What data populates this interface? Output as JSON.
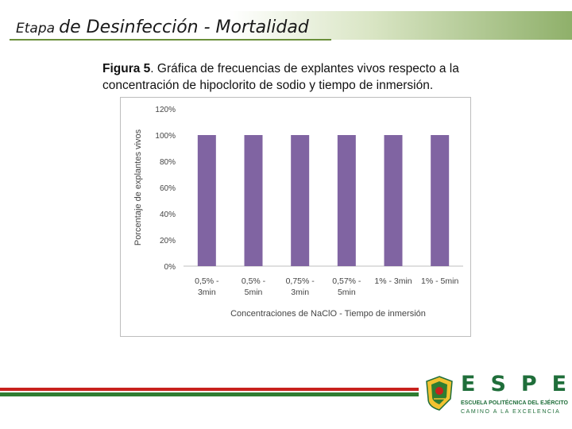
{
  "slide": {
    "title_prefix": "Etapa",
    "title_main": "de Desinfección - Mortalidad"
  },
  "caption": {
    "figure_label": "Figura 5",
    "text": ". Gráfica de frecuencias de explantes vivos respecto  a la concentración de hipoclorito de sodio y tiempo de inmersión."
  },
  "colors": {
    "bar": "#8064a2",
    "stripe_red": "#c8211d",
    "stripe_green": "#2f7d32",
    "brand_green": "#1f6e3a"
  },
  "chart_data": {
    "type": "bar",
    "categories": [
      [
        "0,5% -",
        "3min"
      ],
      [
        "0,5% -",
        "5min"
      ],
      [
        "0,75% -",
        "3min"
      ],
      [
        "0,57% -",
        "5min"
      ],
      [
        "1% - 3min"
      ],
      [
        "1% - 5min"
      ]
    ],
    "values": [
      100,
      100,
      100,
      100,
      100,
      100
    ],
    "title": "",
    "xlabel": "Concentraciones de NaClO - Tiempo de inmersión",
    "ylabel": "Porcentaje de explantes vivos",
    "ylim": [
      0,
      120
    ],
    "yticks": [
      0,
      20,
      40,
      60,
      80,
      100,
      120
    ],
    "ytick_labels": [
      "0%",
      "20%",
      "40%",
      "60%",
      "80%",
      "100%",
      "120%"
    ],
    "grid": false,
    "legend": "none"
  },
  "logo": {
    "letters": "ESPE",
    "line1": "ESCUELA POLITÉCNICA DEL EJÉRCITO",
    "line2": "CAMINO A LA EXCELENCIA",
    "seal_icon": "espe-seal-icon"
  }
}
